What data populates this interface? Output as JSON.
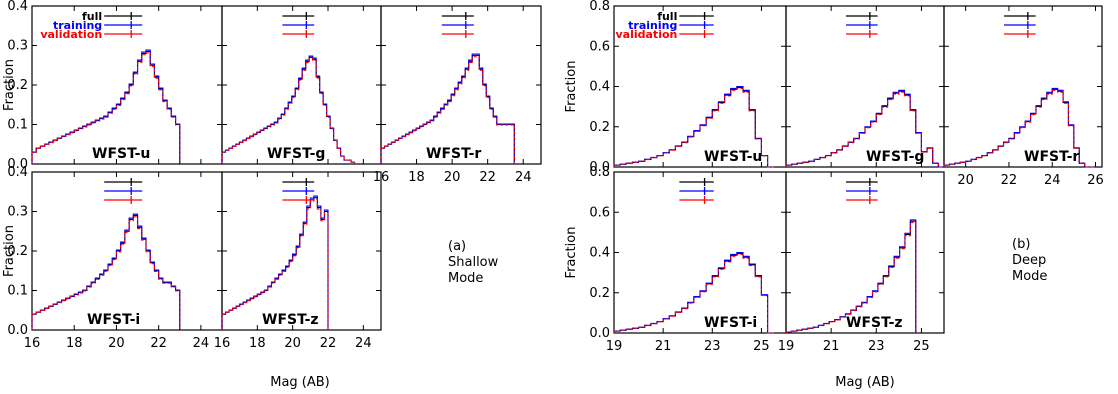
{
  "chart_data": [
    {
      "type": "histogram",
      "mode_label": [
        "(a)",
        "Shallow",
        "Mode"
      ],
      "ylabel": "Fraction",
      "xlabel": "Mag (AB)",
      "ylim": [
        0,
        0.4
      ],
      "yticks": [
        "0.0",
        "0.1",
        "0.2",
        "0.3",
        "0.4"
      ],
      "xlim": [
        16,
        25
      ],
      "xticks": [
        "16",
        "18",
        "20",
        "22",
        "24"
      ],
      "legend_labels": [
        "full",
        "training",
        "validation"
      ],
      "series_colors": {
        "full": "#000000",
        "training": "#0000ff",
        "validation": "#ff0000"
      },
      "panels": [
        {
          "band": "WFST-u",
          "edges": [
            16,
            23
          ],
          "values": [
            0.03,
            0.04,
            0.045,
            0.05,
            0.055,
            0.06,
            0.065,
            0.07,
            0.075,
            0.08,
            0.085,
            0.09,
            0.095,
            0.1,
            0.105,
            0.11,
            0.115,
            0.12,
            0.13,
            0.14,
            0.15,
            0.165,
            0.18,
            0.2,
            0.23,
            0.26,
            0.28,
            0.285,
            0.25,
            0.22,
            0.19,
            0.16,
            0.14,
            0.12,
            0.1
          ]
        },
        {
          "band": "WFST-g",
          "edges": [
            16,
            23.5
          ],
          "values": [
            0.03,
            0.035,
            0.04,
            0.045,
            0.05,
            0.055,
            0.06,
            0.065,
            0.07,
            0.075,
            0.08,
            0.085,
            0.09,
            0.095,
            0.1,
            0.105,
            0.115,
            0.125,
            0.14,
            0.155,
            0.17,
            0.19,
            0.215,
            0.24,
            0.26,
            0.27,
            0.265,
            0.22,
            0.18,
            0.15,
            0.12,
            0.09,
            0.06,
            0.04,
            0.02,
            0.01,
            0.01,
            0.005
          ]
        },
        {
          "band": "WFST-r",
          "edges": [
            16,
            23.5
          ],
          "values": [
            0.04,
            0.045,
            0.05,
            0.055,
            0.06,
            0.065,
            0.07,
            0.075,
            0.08,
            0.085,
            0.09,
            0.095,
            0.1,
            0.105,
            0.11,
            0.12,
            0.13,
            0.14,
            0.15,
            0.16,
            0.175,
            0.19,
            0.205,
            0.22,
            0.24,
            0.26,
            0.275,
            0.275,
            0.24,
            0.2,
            0.17,
            0.14,
            0.12,
            0.1,
            0.1,
            0.1,
            0.1,
            0.1
          ]
        },
        {
          "band": "WFST-i",
          "edges": [
            16,
            23
          ],
          "values": [
            0.04,
            0.045,
            0.05,
            0.055,
            0.06,
            0.065,
            0.07,
            0.075,
            0.08,
            0.085,
            0.09,
            0.095,
            0.1,
            0.11,
            0.12,
            0.13,
            0.14,
            0.15,
            0.165,
            0.18,
            0.2,
            0.22,
            0.25,
            0.28,
            0.29,
            0.26,
            0.23,
            0.2,
            0.17,
            0.15,
            0.13,
            0.12,
            0.12,
            0.11,
            0.1
          ]
        },
        {
          "band": "WFST-z",
          "edges": [
            16,
            22
          ],
          "values": [
            0.04,
            0.045,
            0.05,
            0.055,
            0.06,
            0.065,
            0.07,
            0.075,
            0.08,
            0.085,
            0.09,
            0.095,
            0.1,
            0.11,
            0.12,
            0.13,
            0.14,
            0.15,
            0.16,
            0.175,
            0.19,
            0.21,
            0.24,
            0.27,
            0.31,
            0.33,
            0.335,
            0.31,
            0.28,
            0.3
          ]
        }
      ]
    },
    {
      "type": "histogram",
      "mode_label": [
        "(b)",
        "Deep",
        "Mode"
      ],
      "ylabel": "Fraction",
      "xlabel": "Mag (AB)",
      "ylim": [
        0,
        0.85
      ],
      "yticks": [
        "0.0",
        "0.2",
        "0.4",
        "0.6",
        "0.8"
      ],
      "xlim_top": [
        19,
        26.3
      ],
      "xticks_top": [
        "20",
        "22",
        "24",
        "26"
      ],
      "xlim_bottom": [
        19,
        26
      ],
      "xticks_bottom": [
        "19",
        "21",
        "23",
        "25"
      ],
      "legend_labels": [
        "full",
        "training",
        "validation"
      ],
      "series_colors": {
        "full": "#000000",
        "training": "#0000ff",
        "validation": "#ff0000"
      },
      "panels": [
        {
          "band": "WFST-u",
          "edges": [
            19,
            25.5
          ],
          "values": [
            0.01,
            0.015,
            0.02,
            0.025,
            0.03,
            0.04,
            0.05,
            0.06,
            0.075,
            0.09,
            0.11,
            0.13,
            0.16,
            0.19,
            0.22,
            0.26,
            0.3,
            0.34,
            0.38,
            0.41,
            0.42,
            0.4,
            0.3,
            0.15,
            0.06,
            0.0
          ]
        },
        {
          "band": "WFST-g",
          "edges": [
            19,
            26
          ],
          "values": [
            0.01,
            0.015,
            0.02,
            0.025,
            0.03,
            0.04,
            0.05,
            0.06,
            0.075,
            0.09,
            0.11,
            0.13,
            0.15,
            0.18,
            0.21,
            0.24,
            0.28,
            0.32,
            0.36,
            0.39,
            0.4,
            0.38,
            0.3,
            0.18,
            0.08,
            0.1,
            0.02,
            0.0
          ]
        },
        {
          "band": "WFST-r",
          "edges": [
            19,
            26
          ],
          "values": [
            0.01,
            0.015,
            0.02,
            0.025,
            0.03,
            0.04,
            0.05,
            0.06,
            0.075,
            0.09,
            0.11,
            0.13,
            0.15,
            0.18,
            0.21,
            0.24,
            0.28,
            0.32,
            0.36,
            0.39,
            0.41,
            0.4,
            0.34,
            0.22,
            0.1,
            0.02,
            0.0,
            0.0
          ]
        },
        {
          "band": "WFST-i",
          "edges": [
            19,
            25.5
          ],
          "values": [
            0.01,
            0.015,
            0.02,
            0.025,
            0.03,
            0.04,
            0.05,
            0.06,
            0.075,
            0.09,
            0.11,
            0.13,
            0.16,
            0.19,
            0.22,
            0.26,
            0.3,
            0.34,
            0.38,
            0.41,
            0.42,
            0.4,
            0.36,
            0.3,
            0.2,
            0.0
          ]
        },
        {
          "band": "WFST-z",
          "edges": [
            19,
            24.75
          ],
          "values": [
            0.005,
            0.01,
            0.015,
            0.02,
            0.025,
            0.03,
            0.04,
            0.05,
            0.06,
            0.07,
            0.085,
            0.1,
            0.12,
            0.14,
            0.16,
            0.19,
            0.22,
            0.26,
            0.3,
            0.35,
            0.4,
            0.45,
            0.52,
            0.59
          ]
        }
      ]
    }
  ]
}
